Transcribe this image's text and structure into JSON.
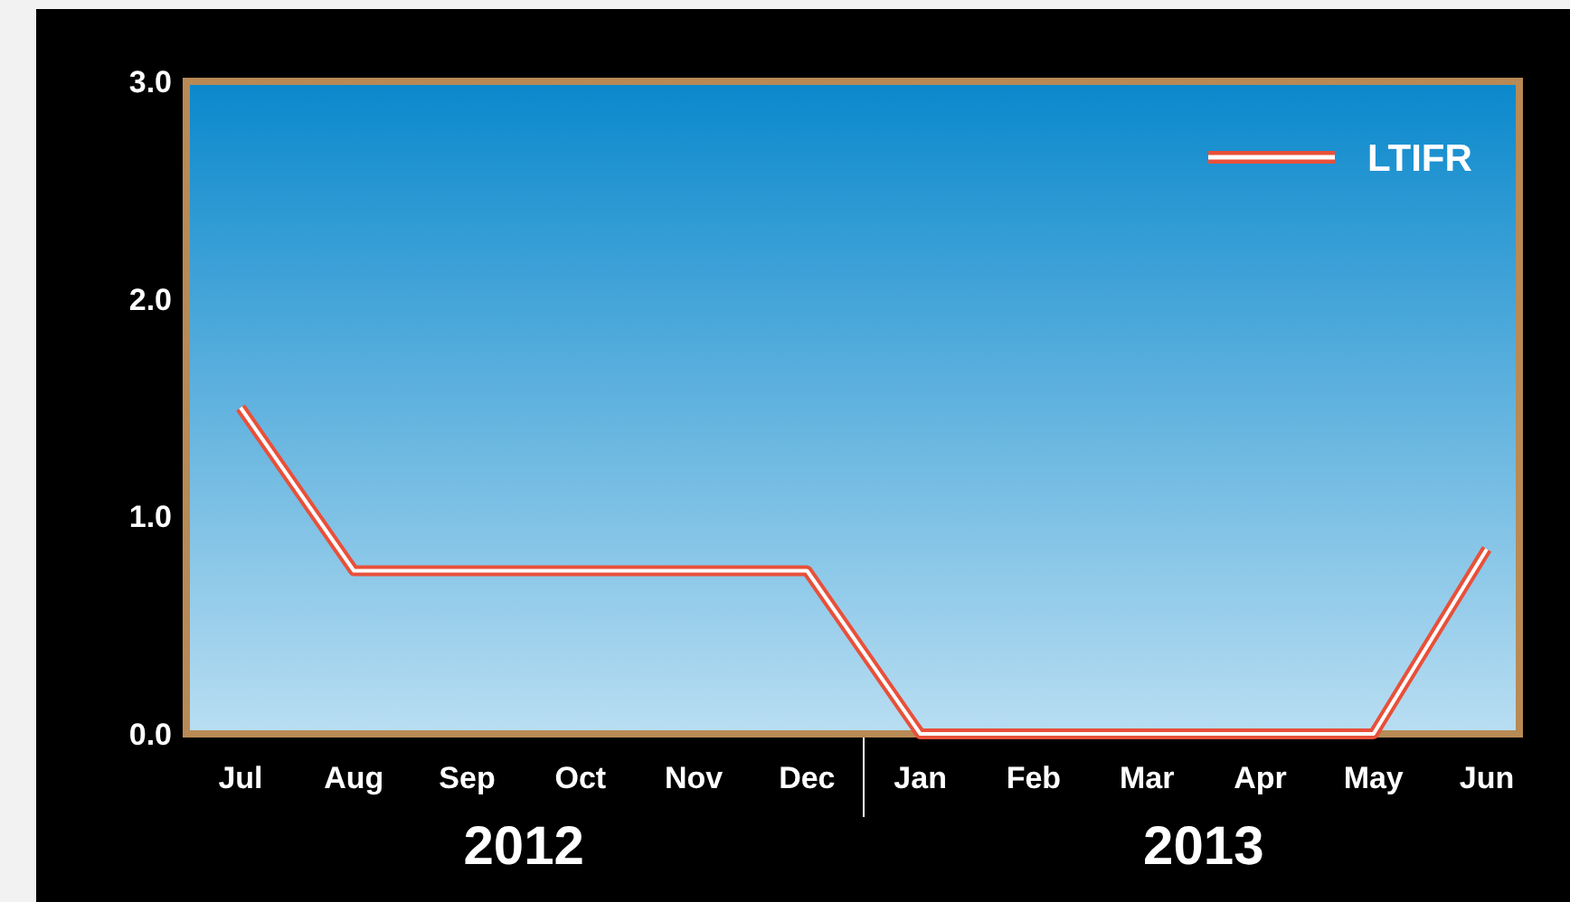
{
  "chart_data": {
    "type": "line",
    "categories": [
      "Jul",
      "Aug",
      "Sep",
      "Oct",
      "Nov",
      "Dec",
      "Jan",
      "Feb",
      "Mar",
      "Apr",
      "May",
      "Jun"
    ],
    "series": [
      {
        "name": "LTIFR",
        "color": "#e8503a",
        "values": [
          1.5,
          0.75,
          0.75,
          0.75,
          0.75,
          0.75,
          0,
          0,
          0,
          0,
          0,
          0.85
        ]
      }
    ],
    "ylim": [
      0,
      3
    ],
    "yticks": [
      {
        "value": 0,
        "label": "0.0"
      },
      {
        "value": 1,
        "label": "1.0"
      },
      {
        "value": 2,
        "label": "2.0"
      },
      {
        "value": 3,
        "label": "3.0"
      }
    ],
    "annotations": [
      "2012",
      "2013"
    ],
    "legend": "top right",
    "grid": false,
    "marker": "none",
    "line_style": "solid"
  }
}
